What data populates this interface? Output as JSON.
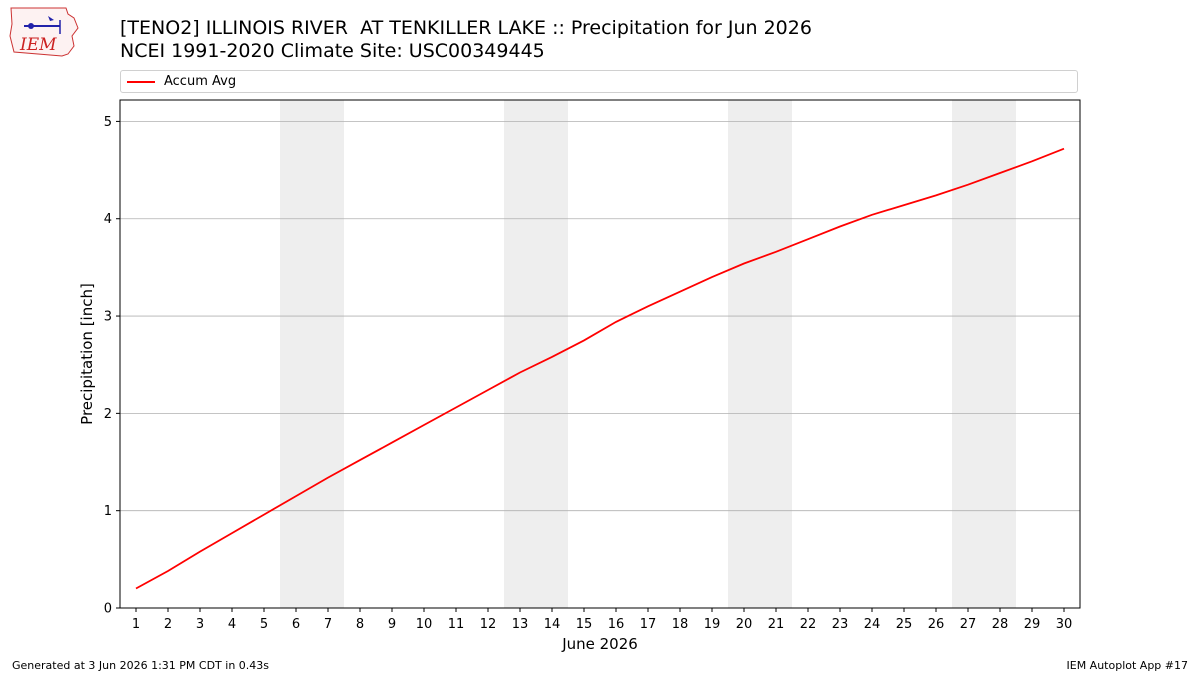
{
  "header": {
    "title_line1": "[TENO2] ILLINOIS RIVER  AT TENKILLER LAKE :: Precipitation for Jun 2026",
    "title_line2": "NCEI 1991-2020 Climate Site: USC00349445"
  },
  "logo": {
    "text": "IEM"
  },
  "footer": {
    "left": "Generated at 3 Jun 2026 1:31 PM CDT in 0.43s",
    "right": "IEM Autoplot App #17"
  },
  "chart_data": {
    "type": "line",
    "xlabel": "June 2026",
    "ylabel": "Precipitation [inch]",
    "xlim": [
      0.5,
      30.5
    ],
    "ylim": [
      0,
      5.22
    ],
    "yticks": [
      0,
      1,
      2,
      3,
      4,
      5
    ],
    "grid": "horizontal",
    "legend_position": "top",
    "weekend_shading": [
      [
        5.5,
        7.5
      ],
      [
        12.5,
        14.5
      ],
      [
        19.5,
        21.5
      ],
      [
        26.5,
        28.5
      ]
    ],
    "colors": {
      "line": "#ff0000",
      "shading": "#eeeeee",
      "grid": "#b0b0b0"
    },
    "x": [
      1,
      2,
      3,
      4,
      5,
      6,
      7,
      8,
      9,
      10,
      11,
      12,
      13,
      14,
      15,
      16,
      17,
      18,
      19,
      20,
      21,
      22,
      23,
      24,
      25,
      26,
      27,
      28,
      29,
      30
    ],
    "series": [
      {
        "name": "Accum Avg",
        "values": [
          0.2,
          0.38,
          0.58,
          0.77,
          0.96,
          1.15,
          1.34,
          1.52,
          1.7,
          1.88,
          2.06,
          2.24,
          2.42,
          2.58,
          2.75,
          2.94,
          3.1,
          3.25,
          3.4,
          3.54,
          3.66,
          3.79,
          3.92,
          4.04,
          4.14,
          4.24,
          4.35,
          4.47,
          4.59,
          4.72
        ]
      }
    ]
  }
}
